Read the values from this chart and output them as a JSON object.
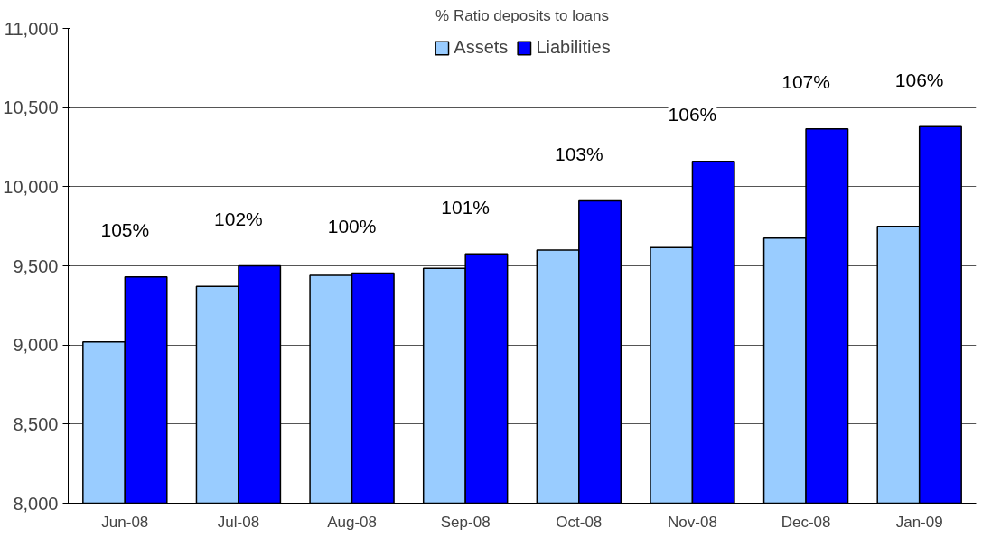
{
  "chart_data": {
    "type": "bar",
    "title": "% Ratio deposits to loans",
    "categories": [
      "Jun-08",
      "Jul-08",
      "Aug-08",
      "Sep-08",
      "Oct-08",
      "Nov-08",
      "Dec-08",
      "Jan-09"
    ],
    "series": [
      {
        "name": "Assets",
        "color": "#99ccff",
        "values": [
          9020,
          9370,
          9440,
          9485,
          9600,
          9615,
          9675,
          9750
        ]
      },
      {
        "name": "Liabilities",
        "color": "#0000ff",
        "values": [
          9430,
          9500,
          9455,
          9575,
          9910,
          10160,
          10365,
          10380
        ]
      }
    ],
    "ylim": [
      8000,
      11000
    ],
    "yticks": [
      {
        "value": 8000,
        "label": "8,000"
      },
      {
        "value": 8500,
        "label": "8,500"
      },
      {
        "value": 9000,
        "label": "9,000"
      },
      {
        "value": 9500,
        "label": "9,500"
      },
      {
        "value": 10000,
        "label": "10,000"
      },
      {
        "value": 10500,
        "label": "10,500"
      },
      {
        "value": 11000,
        "label": "11,000"
      }
    ],
    "grid": "y",
    "legend": "top",
    "annotations": [
      "105%",
      "102%",
      "100%",
      "101%",
      "103%",
      "106%",
      "107%",
      "106%"
    ]
  }
}
